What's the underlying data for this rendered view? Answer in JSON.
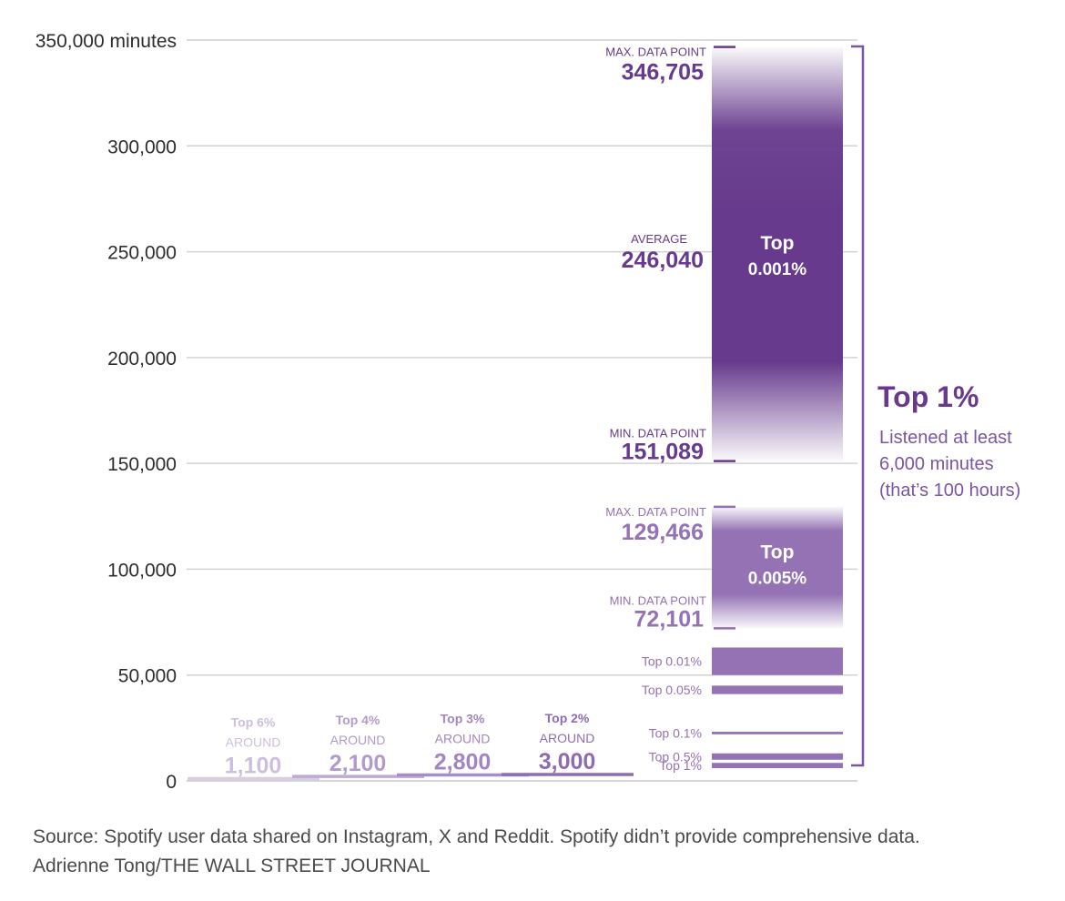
{
  "chart_data": {
    "type": "bar",
    "ylim": [
      0,
      350000
    ],
    "grid": true,
    "yticks": [
      {
        "value": 350000,
        "label": "350,000 minutes"
      },
      {
        "value": 300000,
        "label": "300,000"
      },
      {
        "value": 250000,
        "label": "250,000"
      },
      {
        "value": 200000,
        "label": "200,000"
      },
      {
        "value": 150000,
        "label": "150,000"
      },
      {
        "value": 100000,
        "label": "100,000"
      },
      {
        "value": 50000,
        "label": "50,000"
      },
      {
        "value": 0,
        "label": "0"
      }
    ],
    "groups": [
      {
        "label": "Top 6%",
        "prefix": "AROUND",
        "value_label": "1,100",
        "value": 1100,
        "color": "#d9cde6",
        "text_color": "#cdbfde"
      },
      {
        "label": "Top 4%",
        "prefix": "AROUND",
        "value_label": "2,100",
        "value": 2100,
        "color": "#bfaad6",
        "text_color": "#b29bcc"
      },
      {
        "label": "Top 3%",
        "prefix": "AROUND",
        "value_label": "2,800",
        "value": 2800,
        "color": "#a88dc6",
        "text_color": "#a285c1"
      },
      {
        "label": "Top 2%",
        "prefix": "AROUND",
        "value_label": "3,000",
        "value": 3000,
        "color": "#8e6db3",
        "text_color": "#8d6cb2"
      }
    ],
    "ranges": [
      {
        "name": "Top 0.001%",
        "label_line1": "Top",
        "label_line2": "0.001%",
        "min": 151089,
        "max": 346705,
        "average": 246040,
        "min_label": "MIN. DATA POINT",
        "min_value_label": "151,089",
        "max_label": "MAX. DATA POINT",
        "max_value_label": "346,705",
        "avg_label": "AVERAGE",
        "avg_value_label": "246,040",
        "color": "#673a8d"
      },
      {
        "name": "Top 0.005%",
        "label_line1": "Top",
        "label_line2": "0.005%",
        "min": 72101,
        "max": 129466,
        "min_label": "MIN. DATA POINT",
        "min_value_label": "72,101",
        "max_label": "MAX. DATA POINT",
        "max_value_label": "129,466",
        "color": "#9472b4"
      }
    ],
    "bands": [
      {
        "label": "Top 0.01%",
        "low": 50000,
        "high": 63000
      },
      {
        "label": "Top 0.05%",
        "low": 41000,
        "high": 45000
      },
      {
        "label": "Top 0.1%",
        "low": 22000,
        "high": 23200
      },
      {
        "label": "Top 0.5%",
        "low": 10000,
        "high": 13000
      },
      {
        "label": "Top 1%",
        "low": 6000,
        "high": 8500
      }
    ],
    "band_color": "#9472b4",
    "bracket": {
      "low": 6000,
      "high": 350000,
      "title": "Top 1%",
      "lines": [
        "Listened at least",
        "6,000 minutes",
        "(that’s 100 hours)"
      ],
      "color": "#7a55a3",
      "title_color": "#673a8d"
    }
  },
  "footer": {
    "source": "Source: Spotify user data shared on Instagram, X and Reddit. Spotify didn’t provide comprehensive data.",
    "credit": "Adrienne Tong/THE WALL STREET JOURNAL"
  }
}
